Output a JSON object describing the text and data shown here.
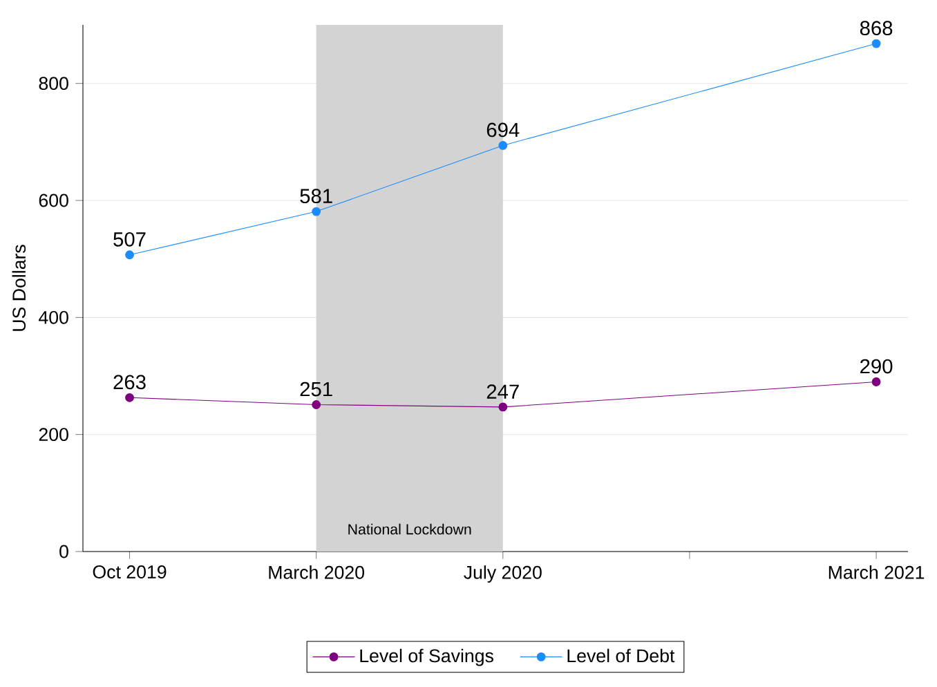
{
  "chart_data": {
    "type": "line",
    "ylabel": "US Dollars",
    "categories": [
      "Oct 2019",
      "March 2020",
      "July 2020",
      null,
      "March 2021"
    ],
    "series": [
      {
        "name": "Level of Savings",
        "color": "#7f007f",
        "values": [
          263,
          251,
          247,
          null,
          290
        ]
      },
      {
        "name": "Level of Debt",
        "color": "#1a8cff",
        "values": [
          507,
          581,
          694,
          null,
          868
        ]
      }
    ],
    "ylim": [
      0,
      900
    ],
    "yticks": [
      0,
      200,
      400,
      600,
      800
    ],
    "bands": [
      {
        "axis": "x",
        "from": "March 2020",
        "to": "July 2020",
        "label": "National Lockdown",
        "color": "#d3d3d3"
      }
    ],
    "data_labels": true,
    "grid": "y",
    "legend": "bottom",
    "marker": "circle",
    "line_style": "solid"
  }
}
